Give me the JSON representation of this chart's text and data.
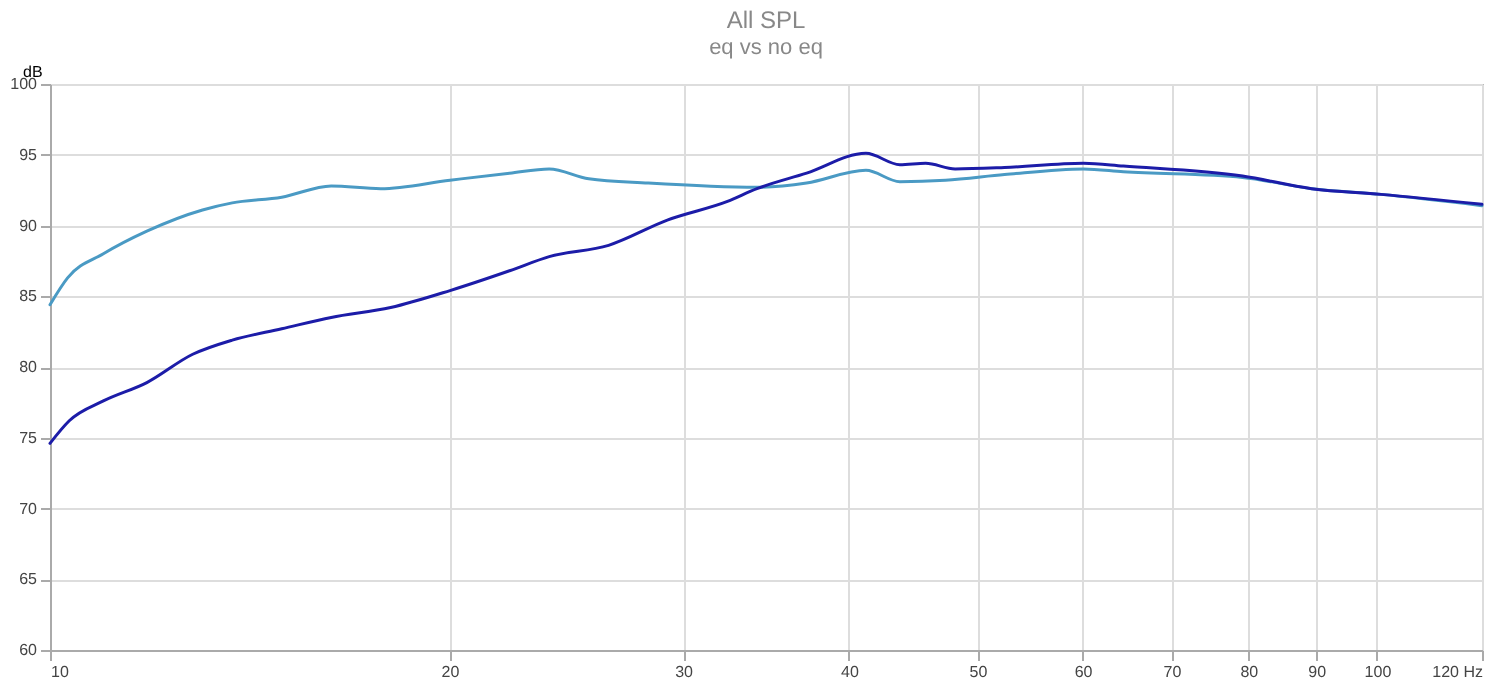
{
  "chart_data": {
    "type": "line",
    "title": "All SPL",
    "subtitle": "eq vs no eq",
    "ylabel": "dB",
    "xlim": [
      10,
      120
    ],
    "xticks": [
      10,
      20,
      30,
      40,
      50,
      60,
      70,
      80,
      90,
      100,
      {
        "value": 120,
        "label": "120 Hz"
      }
    ],
    "ylim": [
      60,
      100
    ],
    "yticks": [
      60,
      65,
      70,
      75,
      80,
      85,
      90,
      95,
      100
    ],
    "log": "x",
    "grid": true,
    "series": [
      {
        "color": "#4a9ac4",
        "x": [
          10,
          10.31,
          10.97,
          11.83,
          13.03,
          13.72,
          14.95,
          16.29,
          17.75,
          20.02,
          22.2,
          23.78,
          25.47,
          28.24,
          34.1,
          37.17,
          41.2,
          43.7,
          47.3,
          52.4,
          60.1,
          64.4,
          79.2,
          89.3,
          100.7,
          120
        ],
        "values": [
          84.4,
          86.3,
          88,
          89.6,
          91.1,
          91.6,
          92,
          92.8,
          92.6,
          93.2,
          93.7,
          94,
          93.3,
          93,
          92.7,
          93,
          93.9,
          93.1,
          93.2,
          93.6,
          94,
          93.8,
          93.4,
          92.6,
          92.2,
          91.4
        ]
      },
      {
        "color": "#1c1ca8",
        "x": [
          10,
          10.34,
          10.97,
          11.83,
          12.81,
          13.72,
          14.95,
          16.29,
          18.06,
          20.02,
          22.2,
          23.78,
          26.36,
          29.22,
          32.4,
          34.1,
          37.17,
          41.2,
          43.7,
          45.7,
          48.1,
          52.4,
          60.1,
          64.4,
          79.2,
          89.3,
          100.7,
          120
        ],
        "values": [
          74.6,
          76.2,
          77.6,
          78.9,
          80.9,
          81.9,
          82.7,
          83.5,
          84.2,
          85.4,
          86.8,
          87.8,
          88.6,
          90.4,
          91.7,
          92.6,
          93.7,
          95.1,
          94.3,
          94.4,
          94,
          94.1,
          94.4,
          94.2,
          93.5,
          92.6,
          92.2,
          91.5
        ]
      }
    ]
  }
}
